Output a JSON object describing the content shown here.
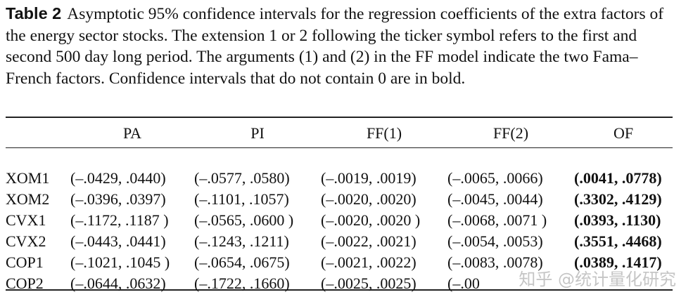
{
  "caption": {
    "label": "Table 2",
    "text": "Asymptotic 95% confidence intervals for the regression coefficients of the extra factors of the energy sector stocks. The extension 1 or 2 following the ticker symbol refers to the first and second 500 day long period. The arguments (1) and (2) in the FF model indicate the two Fama–French factors. Confidence intervals that do not contain 0 are in bold."
  },
  "table": {
    "headers": [
      "",
      "PA",
      "PI",
      "FF(1)",
      "FF(2)",
      "OF"
    ],
    "rows": [
      {
        "ticker": "XOM1",
        "pa": "(–.0429, .0440)",
        "pi": "(–.0577, .0580)",
        "ff1": "(–.0019, .0019)",
        "ff2": "(–.0065, .0066)",
        "of": "(.0041, .0778)"
      },
      {
        "ticker": "XOM2",
        "pa": "(–.0396, .0397)",
        "pi": "(–.1101, .1057)",
        "ff1": "(–.0020, .0020)",
        "ff2": "(–.0045, .0044)",
        "of": "(.3302, .4129)"
      },
      {
        "ticker": "CVX1",
        "pa": "(–.1172, .1187 )",
        "pi": "(–.0565, .0600 )",
        "ff1": "(–.0020, .0020 )",
        "ff2": "(–.0068, .0071 )",
        "of": "(.0393, .1130)"
      },
      {
        "ticker": "CVX2",
        "pa": "(–.0443, .0441)",
        "pi": "(–.1243, .1211)",
        "ff1": "(–.0022, .0021)",
        "ff2": "(–.0054, .0053)",
        "of": "(.3551, .4468)"
      },
      {
        "ticker": "COP1",
        "pa": "(–.1021, .1045 )",
        "pi": "(–.0654, .0675)",
        "ff1": "(–.0021, .0022)",
        "ff2": "(–.0083, .0078)",
        "of": "(.0389, .1417)"
      },
      {
        "ticker": "COP2",
        "pa": "(–.0644, .0632)",
        "pi": "(–.1722, .1660)",
        "ff1": "(–.0025, .0025)",
        "ff2": "(–.00",
        "of": ""
      }
    ]
  },
  "watermark": "知乎 @统计量化研究"
}
